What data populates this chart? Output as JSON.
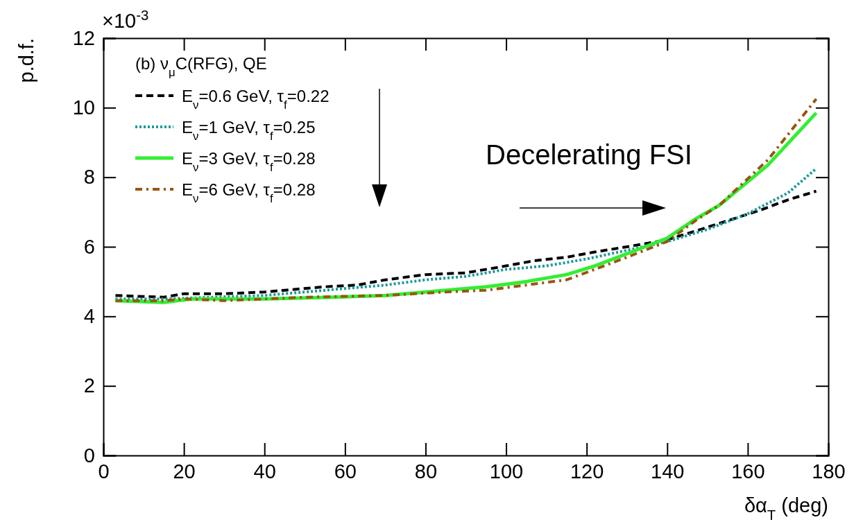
{
  "chart_data": {
    "type": "line",
    "xlabel": "δα$_{T}$ (deg)",
    "ylabel": "p.d.f.",
    "legend_title": "(b) ν$_{μ}$C(RFG), QE",
    "legend": "top left",
    "grid": false,
    "annotations": [
      "×10$^{-3}$",
      "Decelerating FSI"
    ],
    "xlim": [
      0,
      180
    ],
    "ylim": [
      0,
      12
    ],
    "xticks": [
      0,
      20,
      40,
      60,
      80,
      100,
      120,
      140,
      160,
      180
    ],
    "yticks": [
      0,
      2,
      4,
      6,
      8,
      10,
      12
    ],
    "series": [
      {
        "name": "E$_{ν}$=0.6 GeV, τ$_{f}$=0.22",
        "color": "#000000",
        "line_style": "dashed",
        "x": [
          3,
          15,
          20,
          30,
          40,
          45,
          55,
          63,
          70,
          80,
          90,
          100,
          107,
          115,
          122,
          130,
          140,
          147,
          155,
          163,
          170,
          177
        ],
        "values": [
          4.6,
          4.55,
          4.65,
          4.65,
          4.7,
          4.75,
          4.85,
          4.9,
          5.05,
          5.2,
          5.25,
          5.45,
          5.6,
          5.7,
          5.85,
          6.0,
          6.2,
          6.45,
          6.75,
          7.05,
          7.35,
          7.6
        ]
      },
      {
        "name": "E$_{ν}$=1 GeV, τ$_{f}$=0.25",
        "color": "#1a9a9a",
        "line_style": "dotted",
        "x": [
          3,
          15,
          27,
          40,
          50,
          60,
          70,
          80,
          90,
          100,
          110,
          120,
          130,
          140,
          150,
          160,
          170,
          177
        ],
        "values": [
          4.5,
          4.5,
          4.55,
          4.6,
          4.7,
          4.8,
          4.9,
          5.05,
          5.15,
          5.35,
          5.45,
          5.65,
          5.9,
          6.15,
          6.5,
          6.95,
          7.55,
          8.25
        ]
      },
      {
        "name": "E$_{ν}$=3 GeV, τ$_{f}$=0.28",
        "color": "#33ee33",
        "line_style": "solid",
        "x": [
          3,
          15,
          22,
          40,
          57,
          70,
          80,
          95,
          105,
          115,
          122,
          130,
          140,
          147,
          153,
          165,
          177
        ],
        "values": [
          4.45,
          4.4,
          4.5,
          4.5,
          4.55,
          4.6,
          4.7,
          4.85,
          5.0,
          5.2,
          5.45,
          5.8,
          6.25,
          6.8,
          7.2,
          8.35,
          9.85
        ]
      },
      {
        "name": "E$_{ν}$=6 GeV, τ$_{f}$=0.28",
        "color": "#995511",
        "line_style": "dashdot",
        "x": [
          3,
          15,
          20,
          30,
          40,
          50,
          70,
          85,
          95,
          105,
          115,
          122,
          130,
          140,
          147,
          153,
          165,
          177
        ],
        "values": [
          4.45,
          4.45,
          4.5,
          4.45,
          4.5,
          4.55,
          4.6,
          4.7,
          4.75,
          4.9,
          5.05,
          5.35,
          5.7,
          6.15,
          6.75,
          7.2,
          8.5,
          10.25
        ]
      }
    ]
  }
}
